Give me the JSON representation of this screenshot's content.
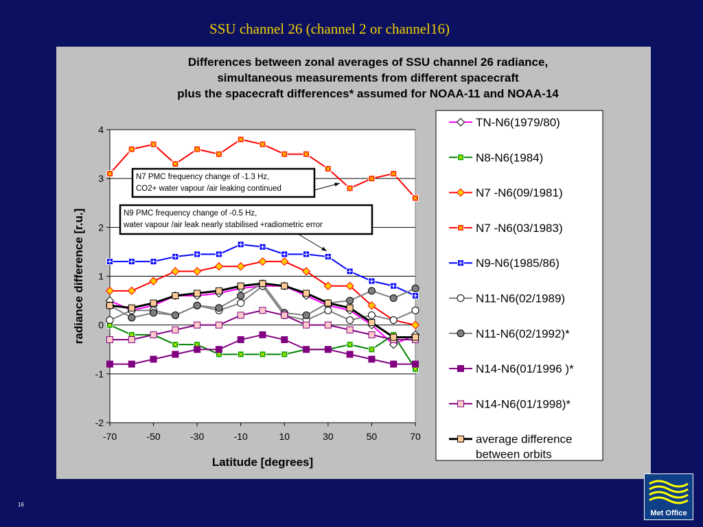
{
  "slide": {
    "title": "SSU channel 26 (channel 2 or channel16)",
    "page_number": "16",
    "logo_text": "Met Office"
  },
  "annotations": [
    "N7 PMC frequency change of -1.3 Hz,",
    "CO2+ water vapour /air leaking continued",
    "N9 PMC frequency change of -0.5 Hz,",
    " water vapour /air leak nearly stabilised  +radiometric error"
  ],
  "chart_data": {
    "type": "line",
    "title_lines": [
      "Differences between zonal averages of SSU channel 26 radiance,",
      "simultaneous measurements from different spacecraft",
      "plus  the spacecraft differences* assumed for NOAA-11 and NOAA-14"
    ],
    "xlabel": "Latitude  [degrees]",
    "ylabel": "radiance difference [r.u.]",
    "xlim": [
      -70,
      70
    ],
    "ylim": [
      -2,
      4
    ],
    "xticks": [
      -70,
      -50,
      -30,
      -10,
      10,
      30,
      50,
      70
    ],
    "yticks": [
      -2,
      -1,
      0,
      1,
      2,
      3,
      4
    ],
    "grid": "horizontal",
    "legend_position": "right",
    "x": [
      -70,
      -60,
      -50,
      -40,
      -30,
      -20,
      -10,
      0,
      10,
      20,
      30,
      40,
      50,
      60,
      70
    ],
    "series": [
      {
        "name": "TN-N6(1979/80)",
        "color": "#ff00ff",
        "marker": "diamond",
        "fill": "#ffffff",
        "values": [
          0.5,
          0.3,
          0.4,
          0.6,
          0.6,
          0.65,
          0.75,
          0.8,
          0.8,
          0.6,
          0.4,
          0.3,
          0.0,
          -0.4,
          -0.2
        ]
      },
      {
        "name": "N8-N6(1984)",
        "color": "#008000",
        "marker": "x-square",
        "fill": "#00a000",
        "values": [
          0.0,
          -0.2,
          -0.2,
          -0.4,
          -0.4,
          -0.6,
          -0.6,
          -0.6,
          -0.6,
          -0.5,
          -0.5,
          -0.4,
          -0.5,
          -0.2,
          -0.9
        ]
      },
      {
        "name": "N7 -N6(09/1981)",
        "color": "#ff0000",
        "marker": "diamond",
        "fill": "#ffcc00",
        "values": [
          0.7,
          0.7,
          0.9,
          1.1,
          1.1,
          1.2,
          1.2,
          1.3,
          1.3,
          1.1,
          0.8,
          0.8,
          0.4,
          0.1,
          0.0
        ]
      },
      {
        "name": "N7 -N6(03/1983)",
        "color": "#ff0000",
        "marker": "x-square",
        "fill": "#ff2000",
        "values": [
          3.1,
          3.6,
          3.7,
          3.3,
          3.6,
          3.5,
          3.8,
          3.7,
          3.5,
          3.5,
          3.2,
          2.8,
          3.0,
          3.1,
          2.6
        ]
      },
      {
        "name": "N9-N6(1985/86)",
        "color": "#0000ff",
        "marker": "plus-square",
        "fill": "#0000ff",
        "values": [
          1.3,
          1.3,
          1.3,
          1.4,
          1.45,
          1.45,
          1.65,
          1.6,
          1.45,
          1.45,
          1.4,
          1.1,
          0.9,
          0.8,
          0.6
        ]
      },
      {
        "name": "N11-N6(02/1989)",
        "color": "#808080",
        "marker": "circle",
        "fill": "#ffffff",
        "values": [
          0.1,
          0.3,
          0.3,
          0.2,
          0.4,
          0.3,
          0.45,
          0.8,
          0.2,
          0.1,
          0.3,
          0.1,
          0.2,
          0.1,
          0.3
        ]
      },
      {
        "name": "N11-N6(02/1992)*",
        "color": "#808080",
        "marker": "circle",
        "fill": "#808080",
        "values": [
          0.4,
          0.15,
          0.25,
          0.2,
          0.4,
          0.35,
          0.6,
          0.85,
          0.25,
          0.2,
          0.45,
          0.5,
          0.7,
          0.55,
          0.75
        ]
      },
      {
        "name": "N14-N6(01/1996 )*",
        "color": "#800080",
        "marker": "square",
        "fill": "#800080",
        "values": [
          -0.8,
          -0.8,
          -0.7,
          -0.6,
          -0.5,
          -0.5,
          -0.3,
          -0.2,
          -0.3,
          -0.5,
          -0.5,
          -0.6,
          -0.7,
          -0.8,
          -0.8
        ]
      },
      {
        "name": "N14-N6(01/1998)*",
        "color": "#800080",
        "marker": "square",
        "fill": "#ffcccc",
        "values": [
          -0.3,
          -0.3,
          -0.2,
          -0.1,
          0.0,
          0.0,
          0.2,
          0.3,
          0.2,
          0.0,
          0.0,
          -0.1,
          -0.2,
          -0.3,
          -0.3
        ]
      },
      {
        "name": "average difference between orbits",
        "color": "#000000",
        "marker": "square",
        "fill": "#ffcc99",
        "width": 3,
        "values": [
          0.4,
          0.35,
          0.45,
          0.6,
          0.65,
          0.7,
          0.8,
          0.85,
          0.8,
          0.65,
          0.45,
          0.35,
          0.05,
          -0.25,
          -0.25
        ]
      }
    ],
    "legend_labels": [
      [
        "TN-N6(1979/80)"
      ],
      [
        "N8-N6(1984)"
      ],
      [
        "N7 -N6(09/1981)"
      ],
      [
        "N7 -N6(03/1983)"
      ],
      [
        "N9-N6(1985/86)"
      ],
      [
        "N11-N6(02/1989)"
      ],
      [
        "N11-N6(02/1992)*"
      ],
      [
        "N14-N6(01/1996 )*"
      ],
      [
        "N14-N6(01/1998)*"
      ],
      [
        "average difference",
        "between orbits"
      ]
    ]
  }
}
